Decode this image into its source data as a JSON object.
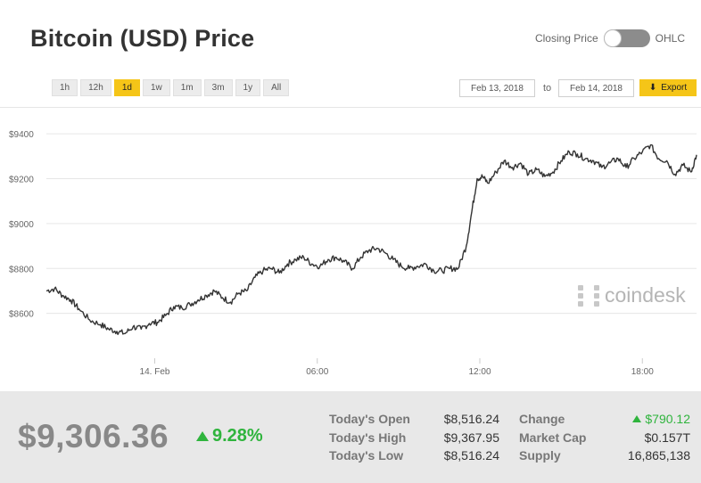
{
  "title": "Bitcoin (USD) Price",
  "toggle": {
    "left_label": "Closing Price",
    "right_label": "OHLC"
  },
  "ranges": [
    "1h",
    "12h",
    "1d",
    "1w",
    "1m",
    "3m",
    "1y",
    "All"
  ],
  "active_range": "1d",
  "date_from": "Feb 13, 2018",
  "to_label": "to",
  "date_to": "Feb 14, 2018",
  "export_label": "Export",
  "watermark": "coindesk",
  "summary": {
    "price": "$9,306.36",
    "change_pct": "9.28%",
    "todays_open_label": "Today's Open",
    "todays_open": "$8,516.24",
    "todays_high_label": "Today's High",
    "todays_high": "$9,367.95",
    "todays_low_label": "Today's Low",
    "todays_low": "$8,516.24",
    "change_label": "Change",
    "change": "$790.12",
    "market_cap_label": "Market Cap",
    "market_cap": "$0.157T",
    "supply_label": "Supply",
    "supply": "16,865,138"
  },
  "colors": {
    "accent": "#f5c518",
    "positive": "#2fb43d",
    "line": "#333333",
    "footer": "#e8e8e8"
  },
  "chart_data": {
    "type": "line",
    "title": "",
    "xlabel": "",
    "ylabel": "",
    "y_ticks": [
      8600,
      8800,
      9000,
      9200,
      9400
    ],
    "y_tick_labels": [
      "$8600",
      "$8800",
      "$9000",
      "$9200",
      "$9400"
    ],
    "ylim": [
      8400,
      9480
    ],
    "x_range_hours": [
      -4,
      20
    ],
    "x_ticks": [
      0,
      6,
      12,
      18
    ],
    "x_tick_labels": [
      "14. Feb",
      "06:00",
      "12:00",
      "18:00"
    ],
    "grid": true,
    "series": [
      {
        "x": [
          -4.0,
          -3.7,
          -3.4,
          -3.1,
          -2.8,
          -2.4,
          -2.0,
          -1.7,
          -1.4,
          -1.1,
          -0.8,
          -0.5,
          -0.2,
          0.1,
          0.4,
          0.7,
          1.0,
          1.3,
          1.6,
          1.9,
          2.2,
          2.5,
          2.8,
          3.1,
          3.4,
          3.7,
          4.0,
          4.3,
          4.6,
          4.9,
          5.2,
          5.5,
          5.8,
          6.1,
          6.4,
          6.7,
          7.0,
          7.3,
          7.6,
          7.9,
          8.2,
          8.5,
          8.8,
          9.1,
          9.4,
          9.7,
          10.0,
          10.3,
          10.6,
          10.9,
          11.2,
          11.5,
          11.7,
          11.9,
          12.1,
          12.3,
          12.6,
          12.9,
          13.2,
          13.5,
          13.8,
          14.1,
          14.4,
          14.7,
          15.0,
          15.3,
          15.6,
          15.9,
          16.2,
          16.5,
          16.8,
          17.1,
          17.4,
          17.7,
          18.0,
          18.3,
          18.6,
          18.9,
          19.2,
          19.5,
          19.8,
          20.0
        ],
        "y": [
          8700,
          8710,
          8680,
          8660,
          8620,
          8570,
          8550,
          8530,
          8520,
          8510,
          8540,
          8530,
          8555,
          8560,
          8590,
          8630,
          8625,
          8640,
          8660,
          8680,
          8700,
          8670,
          8650,
          8690,
          8700,
          8760,
          8790,
          8800,
          8780,
          8820,
          8840,
          8850,
          8820,
          8810,
          8840,
          8850,
          8830,
          8800,
          8850,
          8880,
          8890,
          8870,
          8840,
          8810,
          8800,
          8810,
          8820,
          8790,
          8790,
          8800,
          8800,
          8900,
          9050,
          9200,
          9210,
          9180,
          9230,
          9280,
          9250,
          9270,
          9220,
          9240,
          9210,
          9230,
          9280,
          9320,
          9310,
          9290,
          9280,
          9250,
          9270,
          9290,
          9250,
          9290,
          9320,
          9350,
          9290,
          9280,
          9220,
          9260,
          9230,
          9306
        ]
      }
    ]
  }
}
